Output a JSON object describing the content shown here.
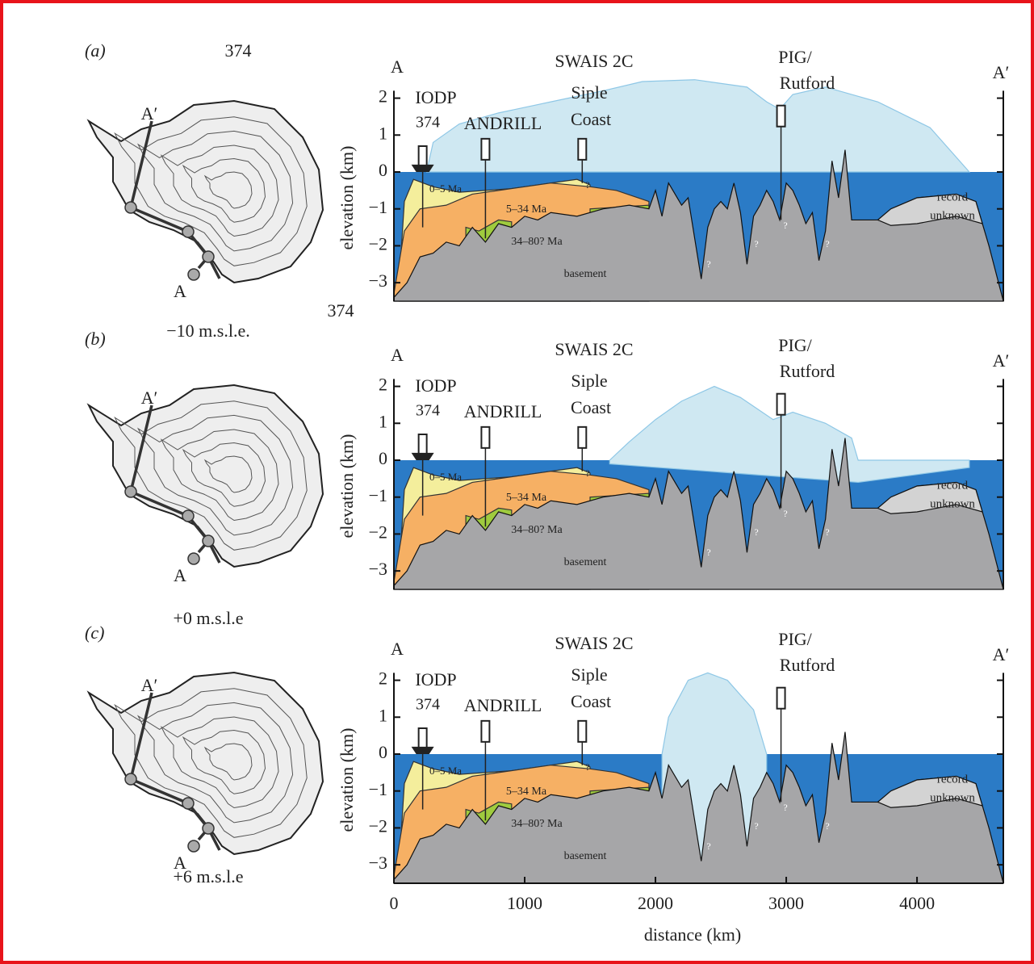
{
  "panels": [
    {
      "label": "(a)",
      "annotations": [
        "374",
        "374"
      ],
      "map": {
        "top": "A′",
        "bottom": "A",
        "caption": "−10 m.s.l.e."
      },
      "section": {
        "left_end": "A",
        "right_end": "A′",
        "swais": "SWAIS 2C",
        "pig": "PIG/",
        "rutford": "Rutford",
        "iodp": "IODP",
        "iodp_site": "374",
        "andrill": "ANDRILL",
        "siple": "Siple",
        "coast": "Coast",
        "unit_young": "0–5 Ma",
        "unit_mid": "5–34 Ma",
        "unit_old": "34–80? Ma",
        "basement": "basement",
        "record": "record",
        "unknown": "unknown",
        "queries": [
          "?",
          "?",
          "?",
          "?",
          "?"
        ]
      },
      "y_label": "elevation (km)",
      "ylim": [
        -3.5,
        2.3
      ],
      "yticks": [
        2,
        1,
        0,
        {
          "value": -1,
          "label": "−1"
        },
        {
          "value": -2,
          "label": "−2"
        },
        {
          "value": -3,
          "label": "−3"
        }
      ]
    },
    {
      "label": "(b)",
      "map": {
        "top": "A′",
        "bottom": "A",
        "caption": "+0 m.s.l.e"
      },
      "section": {
        "left_end": "A",
        "right_end": "A′",
        "swais": "SWAIS 2C",
        "pig": "PIG/",
        "rutford": "Rutford",
        "iodp": "IODP",
        "iodp_site": "374",
        "andrill": "ANDRILL",
        "siple": "Siple",
        "coast": "Coast",
        "unit_young": "0–5 Ma",
        "unit_mid": "5–34 Ma",
        "unit_old": "34–80? Ma",
        "basement": "basement",
        "record": "record",
        "unknown": "unknown",
        "queries": [
          "?",
          "?",
          "?",
          "?",
          "?"
        ]
      },
      "y_label": "elevation (km)",
      "ylim": [
        -3.5,
        2.3
      ],
      "yticks": [
        2,
        1,
        0,
        {
          "value": -1,
          "label": "−1"
        },
        {
          "value": -2,
          "label": "−2"
        },
        {
          "value": -3,
          "label": "−3"
        }
      ]
    },
    {
      "label": "(c)",
      "map": {
        "top": "A′",
        "bottom": "A",
        "caption": "+6 m.s.l.e"
      },
      "section": {
        "left_end": "A",
        "right_end": "A′",
        "swais": "SWAIS 2C",
        "pig": "PIG/",
        "rutford": "Rutford",
        "iodp": "IODP",
        "iodp_site": "374",
        "andrill": "ANDRILL",
        "siple": "Siple",
        "coast": "Coast",
        "unit_young": "0–5 Ma",
        "unit_mid": "5–34 Ma",
        "unit_old": "34–80? Ma",
        "basement": "basement",
        "record": "record",
        "unknown": "unknown",
        "queries": [
          "?",
          "?",
          "?",
          "?",
          "?"
        ]
      },
      "y_label": "elevation (km)",
      "ylim": [
        -3.5,
        2.3
      ],
      "yticks": [
        2,
        1,
        0,
        {
          "value": -1,
          "label": "−1"
        },
        {
          "value": -2,
          "label": "−2"
        },
        {
          "value": -3,
          "label": "−3"
        }
      ]
    }
  ],
  "distance_axis": {
    "label": "distance (km)",
    "xlim": [
      0,
      4660
    ],
    "xticks": [
      0,
      1000,
      2000,
      3000,
      4000
    ]
  }
}
